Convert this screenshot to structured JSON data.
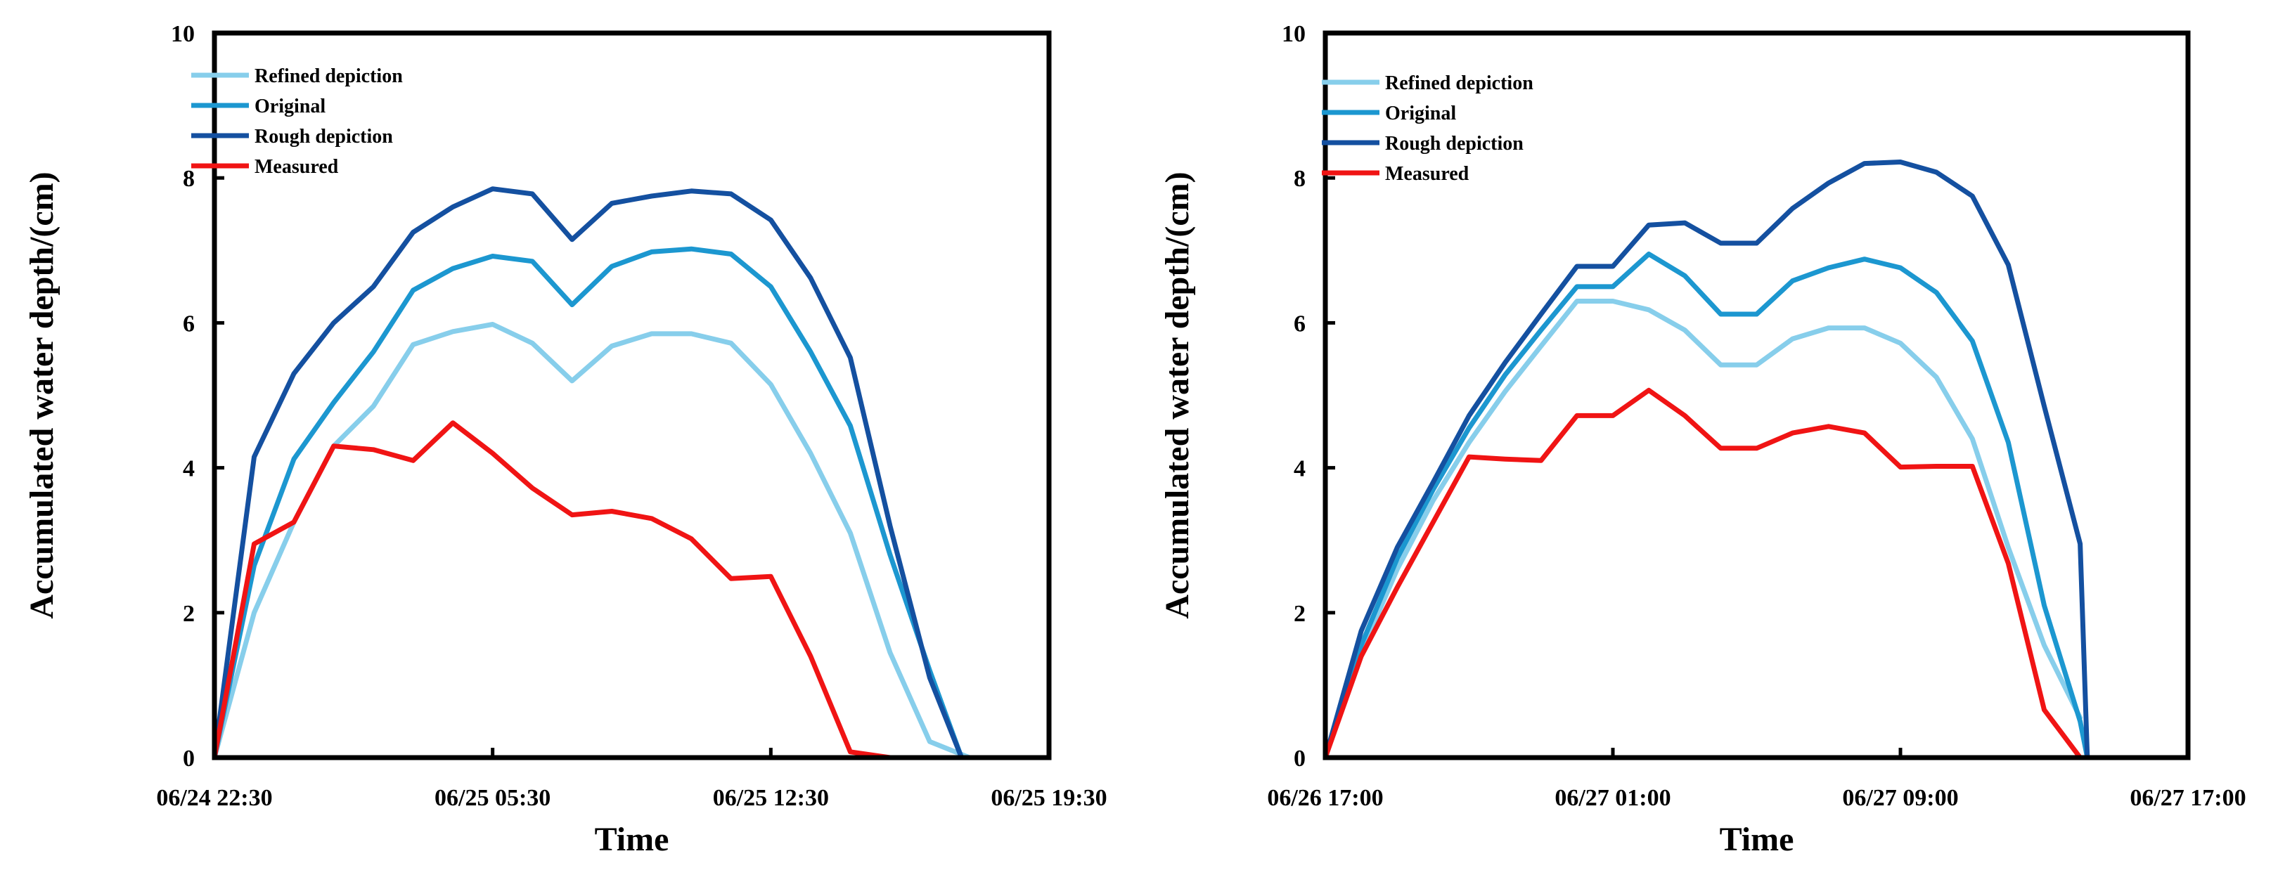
{
  "chart_data": [
    {
      "type": "line",
      "title": "",
      "xlabel": "Time",
      "ylabel": "Accumulated water depth/(cm)",
      "ylim": [
        0,
        10
      ],
      "yticks": [
        0,
        2,
        4,
        6,
        8,
        10
      ],
      "x_unit": "hours since 06/24 22:30",
      "xlim": [
        0,
        21
      ],
      "xticks": [
        {
          "x": 0,
          "label": "06/24 22:30"
        },
        {
          "x": 7,
          "label": "06/25 05:30"
        },
        {
          "x": 14,
          "label": "06/25 12:30"
        },
        {
          "x": 21,
          "label": "06/25 19:30"
        }
      ],
      "legend_position": "top-left",
      "series": [
        {
          "name": "Refined depiction",
          "color": "#87CEEB",
          "x": [
            0,
            1,
            2,
            3,
            4,
            5,
            6,
            7,
            8,
            9,
            10,
            11,
            12,
            13,
            14,
            15,
            16,
            17,
            18,
            19,
            20
          ],
          "y": [
            0,
            2.0,
            3.25,
            4.3,
            4.85,
            5.7,
            5.88,
            5.98,
            5.72,
            5.2,
            5.68,
            5.85,
            5.85,
            5.72,
            5.15,
            4.2,
            3.1,
            1.45,
            0.22,
            0,
            0
          ]
        },
        {
          "name": "Original",
          "color": "#1C97D0",
          "x": [
            0,
            1,
            2,
            3,
            4,
            5,
            6,
            7,
            8,
            9,
            10,
            11,
            12,
            13,
            14,
            15,
            16,
            17,
            18,
            18.8
          ],
          "y": [
            0,
            2.65,
            4.12,
            4.9,
            5.6,
            6.45,
            6.75,
            6.92,
            6.85,
            6.25,
            6.78,
            6.98,
            7.02,
            6.95,
            6.5,
            5.6,
            4.58,
            2.8,
            1.2,
            0
          ]
        },
        {
          "name": "Rough depiction",
          "color": "#1450A0",
          "x": [
            0,
            1,
            2,
            3,
            4,
            5,
            6,
            7,
            8,
            9,
            10,
            11,
            12,
            13,
            14,
            15,
            16,
            17,
            18,
            18.8
          ],
          "y": [
            0,
            4.15,
            5.3,
            6.0,
            6.5,
            7.25,
            7.6,
            7.85,
            7.78,
            7.15,
            7.65,
            7.75,
            7.82,
            7.78,
            7.42,
            6.62,
            5.52,
            3.2,
            1.1,
            0
          ]
        },
        {
          "name": "Measured",
          "color": "#F01414",
          "x": [
            0,
            1,
            2,
            3,
            4,
            5,
            6,
            7,
            8,
            9,
            10,
            11,
            12,
            13,
            14,
            15,
            16,
            17
          ],
          "y": [
            0,
            2.95,
            3.25,
            4.3,
            4.25,
            4.1,
            4.62,
            4.2,
            3.72,
            3.35,
            3.4,
            3.3,
            3.02,
            2.47,
            2.5,
            1.4,
            0.08,
            0
          ]
        }
      ]
    },
    {
      "type": "line",
      "title": "",
      "xlabel": "Time",
      "ylabel": "Accumulated water depth/(cm)",
      "ylim": [
        0,
        10
      ],
      "yticks": [
        0,
        2,
        4,
        6,
        8,
        10
      ],
      "x_unit": "hours since 06/26 17:00",
      "xlim": [
        0,
        24
      ],
      "xticks": [
        {
          "x": 0,
          "label": "06/26 17:00"
        },
        {
          "x": 8,
          "label": "06/27 01:00"
        },
        {
          "x": 16,
          "label": "06/27 09:00"
        },
        {
          "x": 24,
          "label": "06/27 17:00"
        }
      ],
      "legend_position": "top-left",
      "series": [
        {
          "name": "Refined depiction",
          "color": "#87CEEB",
          "x": [
            0,
            1,
            2,
            3,
            4,
            5,
            6,
            7,
            8,
            9,
            10,
            11,
            12,
            13,
            14,
            15,
            16,
            17,
            18,
            19,
            20,
            21
          ],
          "y": [
            0,
            1.45,
            2.6,
            3.55,
            4.35,
            5.05,
            5.68,
            6.3,
            6.3,
            6.18,
            5.9,
            5.42,
            5.42,
            5.78,
            5.93,
            5.93,
            5.72,
            5.25,
            4.4,
            2.9,
            1.55,
            0.55
          ]
        },
        {
          "name": "Original",
          "color": "#1C97D0",
          "x": [
            0,
            1,
            2,
            3,
            4,
            5,
            6,
            7,
            8,
            9,
            10,
            11,
            12,
            13,
            14,
            15,
            16,
            17,
            18,
            19,
            20,
            21,
            21.2
          ],
          "y": [
            0,
            1.55,
            2.75,
            3.7,
            4.55,
            5.28,
            5.9,
            6.5,
            6.5,
            6.95,
            6.65,
            6.12,
            6.12,
            6.58,
            6.76,
            6.88,
            6.76,
            6.42,
            5.75,
            4.35,
            2.1,
            0.5,
            0
          ]
        },
        {
          "name": "Rough depiction",
          "color": "#1450A0",
          "x": [
            0,
            1,
            2,
            3,
            4,
            5,
            6,
            7,
            8,
            9,
            10,
            11,
            12,
            13,
            14,
            15,
            16,
            17,
            18,
            19,
            20,
            21,
            21.2
          ],
          "y": [
            0,
            1.75,
            2.9,
            3.8,
            4.72,
            5.45,
            6.12,
            6.78,
            6.78,
            7.35,
            7.38,
            7.1,
            7.1,
            7.58,
            7.93,
            8.2,
            8.22,
            8.08,
            7.75,
            6.8,
            4.85,
            2.95,
            0
          ]
        },
        {
          "name": "Measured",
          "color": "#F01414",
          "x": [
            0,
            1,
            2,
            3,
            4,
            5,
            6,
            7,
            8,
            9,
            10,
            11,
            12,
            13,
            14,
            15,
            16,
            17,
            18,
            19,
            20,
            21
          ],
          "y": [
            0,
            1.4,
            2.35,
            3.25,
            4.15,
            4.12,
            4.1,
            4.72,
            4.72,
            5.07,
            4.72,
            4.27,
            4.27,
            4.48,
            4.57,
            4.48,
            4.01,
            4.02,
            4.02,
            2.68,
            0.66,
            0
          ]
        }
      ]
    }
  ]
}
